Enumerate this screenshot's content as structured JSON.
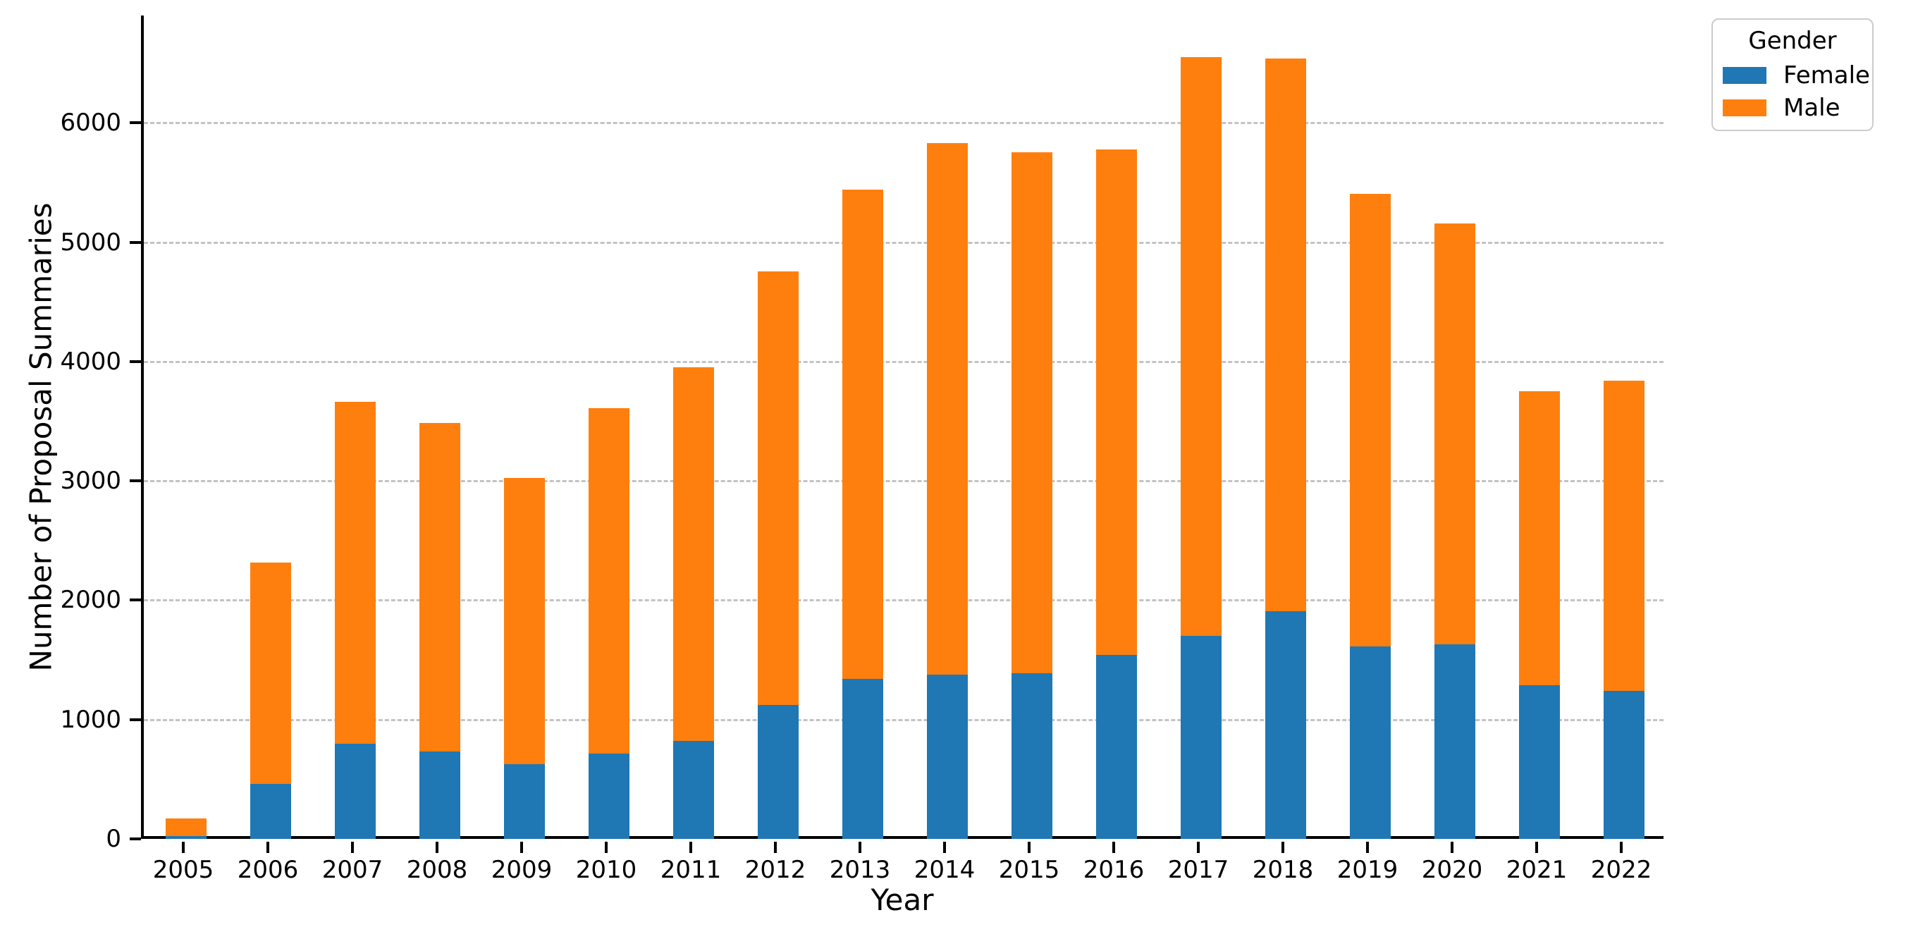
{
  "figure": {
    "background": "#ffffff"
  },
  "axes": {
    "spine_color": "#000000",
    "grid_color": "#c3c3c3",
    "grid_style": "dashed",
    "text_color": "#000000"
  },
  "chart_data": {
    "type": "bar",
    "stacked": true,
    "title": "",
    "xlabel": "Year",
    "ylabel": "Number of Proposal Summaries",
    "categories": [
      "2005",
      "2006",
      "2007",
      "2008",
      "2009",
      "2010",
      "2011",
      "2012",
      "2013",
      "2014",
      "2015",
      "2016",
      "2017",
      "2018",
      "2019",
      "2020",
      "2021",
      "2022"
    ],
    "series": [
      {
        "name": "Female",
        "color": "#1f77b4",
        "values": [
          25,
          460,
          800,
          730,
          625,
          715,
          820,
          1120,
          1340,
          1375,
          1390,
          1540,
          1700,
          1910,
          1610,
          1630,
          1290,
          1240
        ]
      },
      {
        "name": "Male",
        "color": "#ff7f0e",
        "values": [
          145,
          1855,
          2860,
          2755,
          2400,
          2895,
          3130,
          3635,
          4100,
          4455,
          4365,
          4235,
          4850,
          4630,
          3795,
          3525,
          2460,
          2600
        ]
      }
    ],
    "totals": [
      170,
      2315,
      3660,
      3485,
      3025,
      3610,
      3950,
      4755,
      5440,
      5830,
      5755,
      5775,
      6550,
      6540,
      5405,
      5155,
      3750,
      3840
    ],
    "legend": {
      "title": "Gender",
      "position": "upper-right-outside"
    },
    "ylim": [
      0,
      6900
    ],
    "yticks": [
      0,
      1000,
      2000,
      3000,
      4000,
      5000,
      6000
    ],
    "grid": true
  }
}
